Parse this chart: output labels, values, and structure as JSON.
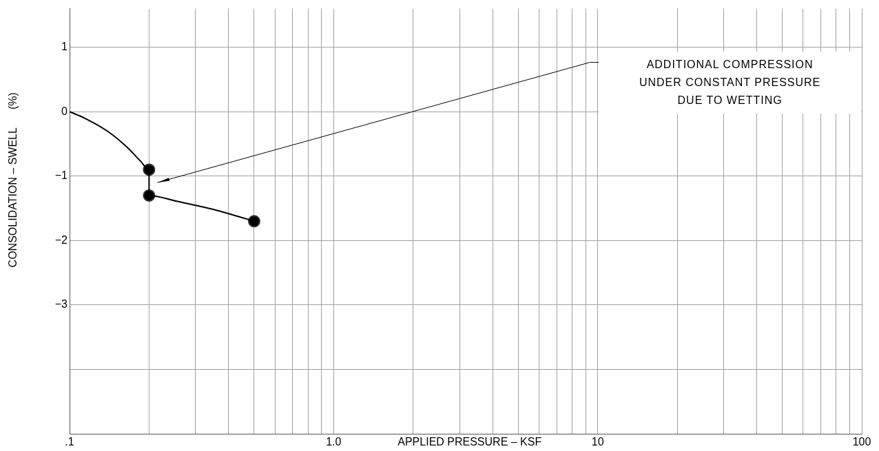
{
  "chart_data": {
    "type": "line",
    "xlabel": "APPLIED PRESSURE – KSF",
    "ylabel": "CONSOLIDATION – SWELL      (%)",
    "log": "x",
    "grid": true,
    "legend": false,
    "xlim": [
      0.1,
      100
    ],
    "ylim": [
      -5,
      1.6
    ],
    "xticks": [
      {
        "value": 0.1,
        "label": ".1"
      },
      {
        "value": 0.2,
        "label": null
      },
      {
        "value": 0.3,
        "label": null
      },
      {
        "value": 0.4,
        "label": null
      },
      {
        "value": 0.5,
        "label": null
      },
      {
        "value": 0.6,
        "label": null
      },
      {
        "value": 0.7,
        "label": null
      },
      {
        "value": 0.8,
        "label": null
      },
      {
        "value": 0.9,
        "label": null
      },
      {
        "value": 1,
        "label": "1.0"
      },
      {
        "value": 2,
        "label": null
      },
      {
        "value": 3,
        "label": null
      },
      {
        "value": 4,
        "label": null
      },
      {
        "value": 5,
        "label": null
      },
      {
        "value": 6,
        "label": null
      },
      {
        "value": 7,
        "label": null
      },
      {
        "value": 8,
        "label": null
      },
      {
        "value": 9,
        "label": null
      },
      {
        "value": 10,
        "label": "10"
      },
      {
        "value": 20,
        "label": null
      },
      {
        "value": 30,
        "label": null
      },
      {
        "value": 40,
        "label": null
      },
      {
        "value": 50,
        "label": null
      },
      {
        "value": 60,
        "label": null
      },
      {
        "value": 70,
        "label": null
      },
      {
        "value": 80,
        "label": null
      },
      {
        "value": 90,
        "label": null
      },
      {
        "value": 100,
        "label": "100"
      }
    ],
    "yticks": [
      {
        "value": -4,
        "label": null
      },
      {
        "value": -3,
        "label": "−3"
      },
      {
        "value": -2,
        "label": "−2"
      },
      {
        "value": -1,
        "label": "−1"
      },
      0,
      1
    ],
    "series": [
      {
        "marker": "none",
        "color": "#000000",
        "x": [
          0.1,
          0.114,
          0.14,
          0.164,
          0.185,
          0.2,
          0.2,
          0.255,
          0.345,
          0.447,
          0.5
        ],
        "values": [
          0,
          -0.1,
          -0.31,
          -0.54,
          -0.76,
          -0.9,
          -1.3,
          -1.39,
          -1.51,
          -1.64,
          -1.7
        ]
      },
      {
        "type": "scatter",
        "marker": "circle",
        "color": "#000000",
        "x": [
          0.2,
          0.2,
          0.5
        ],
        "values": [
          -0.9,
          -1.3,
          -1.7
        ]
      }
    ],
    "annotations": [
      "ADDITIONAL COMPRESSION\nUNDER CONSTANT PRESSURE\nDUE TO WETTING"
    ]
  }
}
